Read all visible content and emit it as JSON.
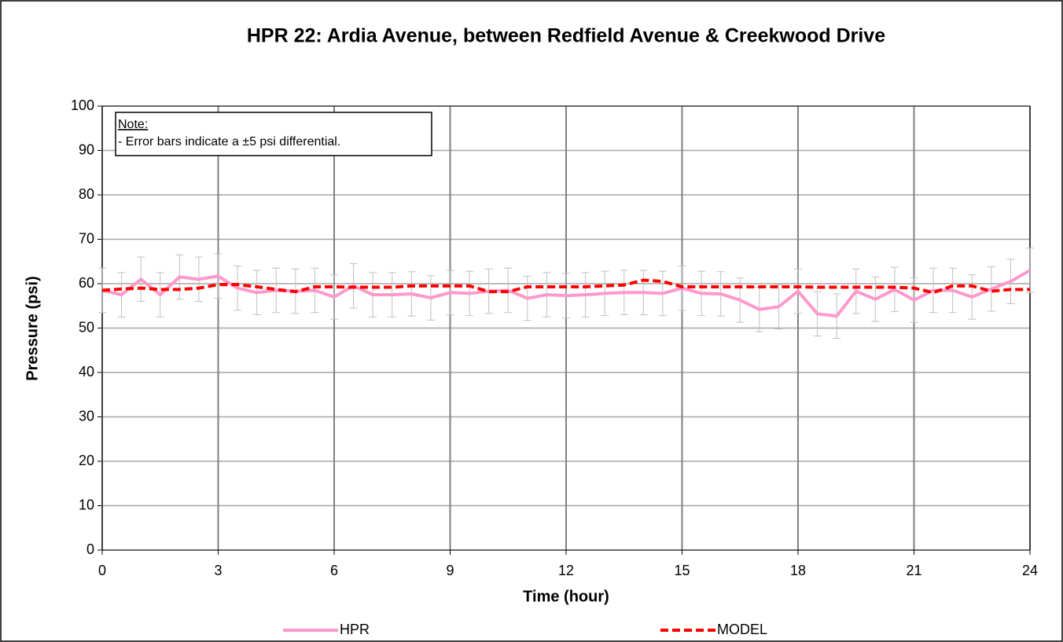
{
  "chart_data": {
    "type": "line",
    "title": "HPR 22: Ardia Avenue, between Redfield Avenue & Creekwood Drive",
    "xlabel": "Time (hour)",
    "ylabel": "Pressure (psi)",
    "annotations": [
      "Note:",
      "- Error bars indicate a ±5 psi differential."
    ],
    "x": [
      0,
      0.5,
      1,
      1.5,
      2,
      2.5,
      3,
      3.5,
      4,
      4.5,
      5,
      5.5,
      6,
      6.5,
      7,
      7.5,
      8,
      8.5,
      9,
      9.5,
      10,
      10.5,
      11,
      11.5,
      12,
      12.5,
      13,
      13.5,
      14,
      14.5,
      15,
      15.5,
      16,
      16.5,
      17,
      17.5,
      18,
      18.5,
      19,
      19.5,
      20,
      20.5,
      21,
      21.5,
      22,
      22.5,
      23,
      23.5,
      24
    ],
    "series": [
      {
        "name": "HPR",
        "color": "#ff99cc",
        "dashed": false,
        "values": [
          58.5,
          57.5,
          61,
          57.5,
          61.5,
          61,
          61.7,
          59,
          58,
          58.5,
          58.3,
          58.5,
          57,
          59.5,
          57.5,
          57.5,
          57.7,
          56.8,
          58,
          57.8,
          58.3,
          58.5,
          56.7,
          57.5,
          57.3,
          57.5,
          57.8,
          58,
          58,
          57.8,
          59,
          57.8,
          57.7,
          56.3,
          54.2,
          54.8,
          58.3,
          53.2,
          52.7,
          58.3,
          56.5,
          58.7,
          56.3,
          58.5,
          58.5,
          57,
          58.8,
          60.5,
          63
        ],
        "errors": [
          5,
          5,
          5,
          5,
          5,
          5,
          5,
          5,
          5,
          5,
          5,
          5,
          5,
          5,
          5,
          5,
          5,
          5,
          5,
          5,
          5,
          5,
          5,
          5,
          5,
          5,
          5,
          5,
          5,
          5,
          5,
          5,
          5,
          5,
          5,
          5,
          5,
          5,
          5,
          5,
          5,
          5,
          5,
          5,
          5,
          5,
          5,
          5,
          5
        ],
        "error_color": "#c0c0c0"
      },
      {
        "name": "MODEL",
        "color": "#ff0000",
        "dashed": true,
        "values": [
          58.5,
          58.8,
          59,
          58.7,
          58.7,
          59,
          59.8,
          59.8,
          59.3,
          58.7,
          58.2,
          59.3,
          59.3,
          59.2,
          59.2,
          59.2,
          59.5,
          59.5,
          59.5,
          59.5,
          58.2,
          58.2,
          59.3,
          59.3,
          59.3,
          59.3,
          59.5,
          59.7,
          60.8,
          60.5,
          59.3,
          59.3,
          59.3,
          59.3,
          59.3,
          59.3,
          59.3,
          59.2,
          59.2,
          59.2,
          59.2,
          59.2,
          59,
          58,
          59.5,
          59.5,
          58.3,
          58.7,
          58.7
        ]
      }
    ],
    "xlim": [
      0,
      24
    ],
    "xticks": [
      0,
      3,
      6,
      9,
      12,
      15,
      18,
      21,
      24
    ],
    "ylim": [
      0,
      100
    ],
    "yticks": [
      0,
      10,
      20,
      30,
      40,
      50,
      60,
      70,
      80,
      90,
      100
    ],
    "grid": true,
    "legend": "bottom"
  }
}
